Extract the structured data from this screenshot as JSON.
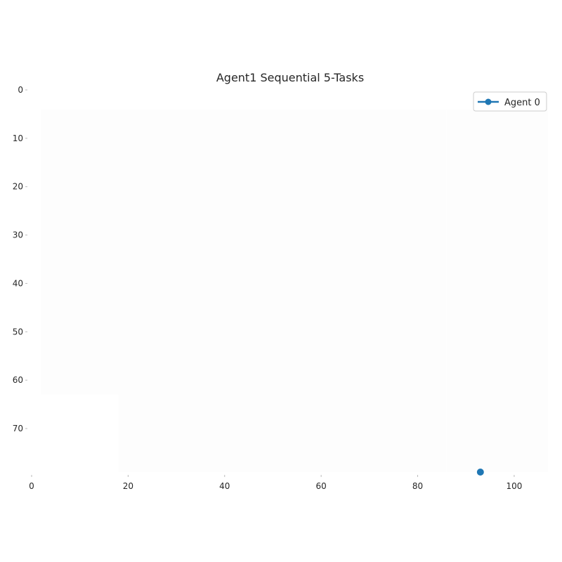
{
  "chart_data": {
    "type": "scatter",
    "title": "Agent1 Sequential 5-Tasks",
    "xlabel": "",
    "ylabel": "",
    "xlim": [
      0,
      107
    ],
    "ylim": [
      79,
      0
    ],
    "x_ticks": [
      0,
      20,
      40,
      60,
      80,
      100
    ],
    "y_ticks": [
      0,
      10,
      20,
      30,
      40,
      50,
      60,
      70
    ],
    "grid": false,
    "legend": "top-right",
    "series": [
      {
        "name": "Agent 0",
        "color": "#1f77b4",
        "marker": "circle",
        "points": [
          [
            93,
            79
          ]
        ]
      }
    ],
    "background_blocks": [
      {
        "x": [
          2,
          18
        ],
        "y": [
          4,
          63
        ]
      },
      {
        "x": [
          18,
          30
        ],
        "y": [
          4,
          79
        ]
      },
      {
        "x": [
          30,
          50
        ],
        "y": [
          4,
          79
        ]
      },
      {
        "x": [
          50,
          70
        ],
        "y": [
          4,
          79
        ]
      },
      {
        "x": [
          70,
          86
        ],
        "y": [
          4,
          79
        ]
      },
      {
        "x": [
          86,
          107
        ],
        "y": [
          4,
          79
        ]
      }
    ]
  }
}
